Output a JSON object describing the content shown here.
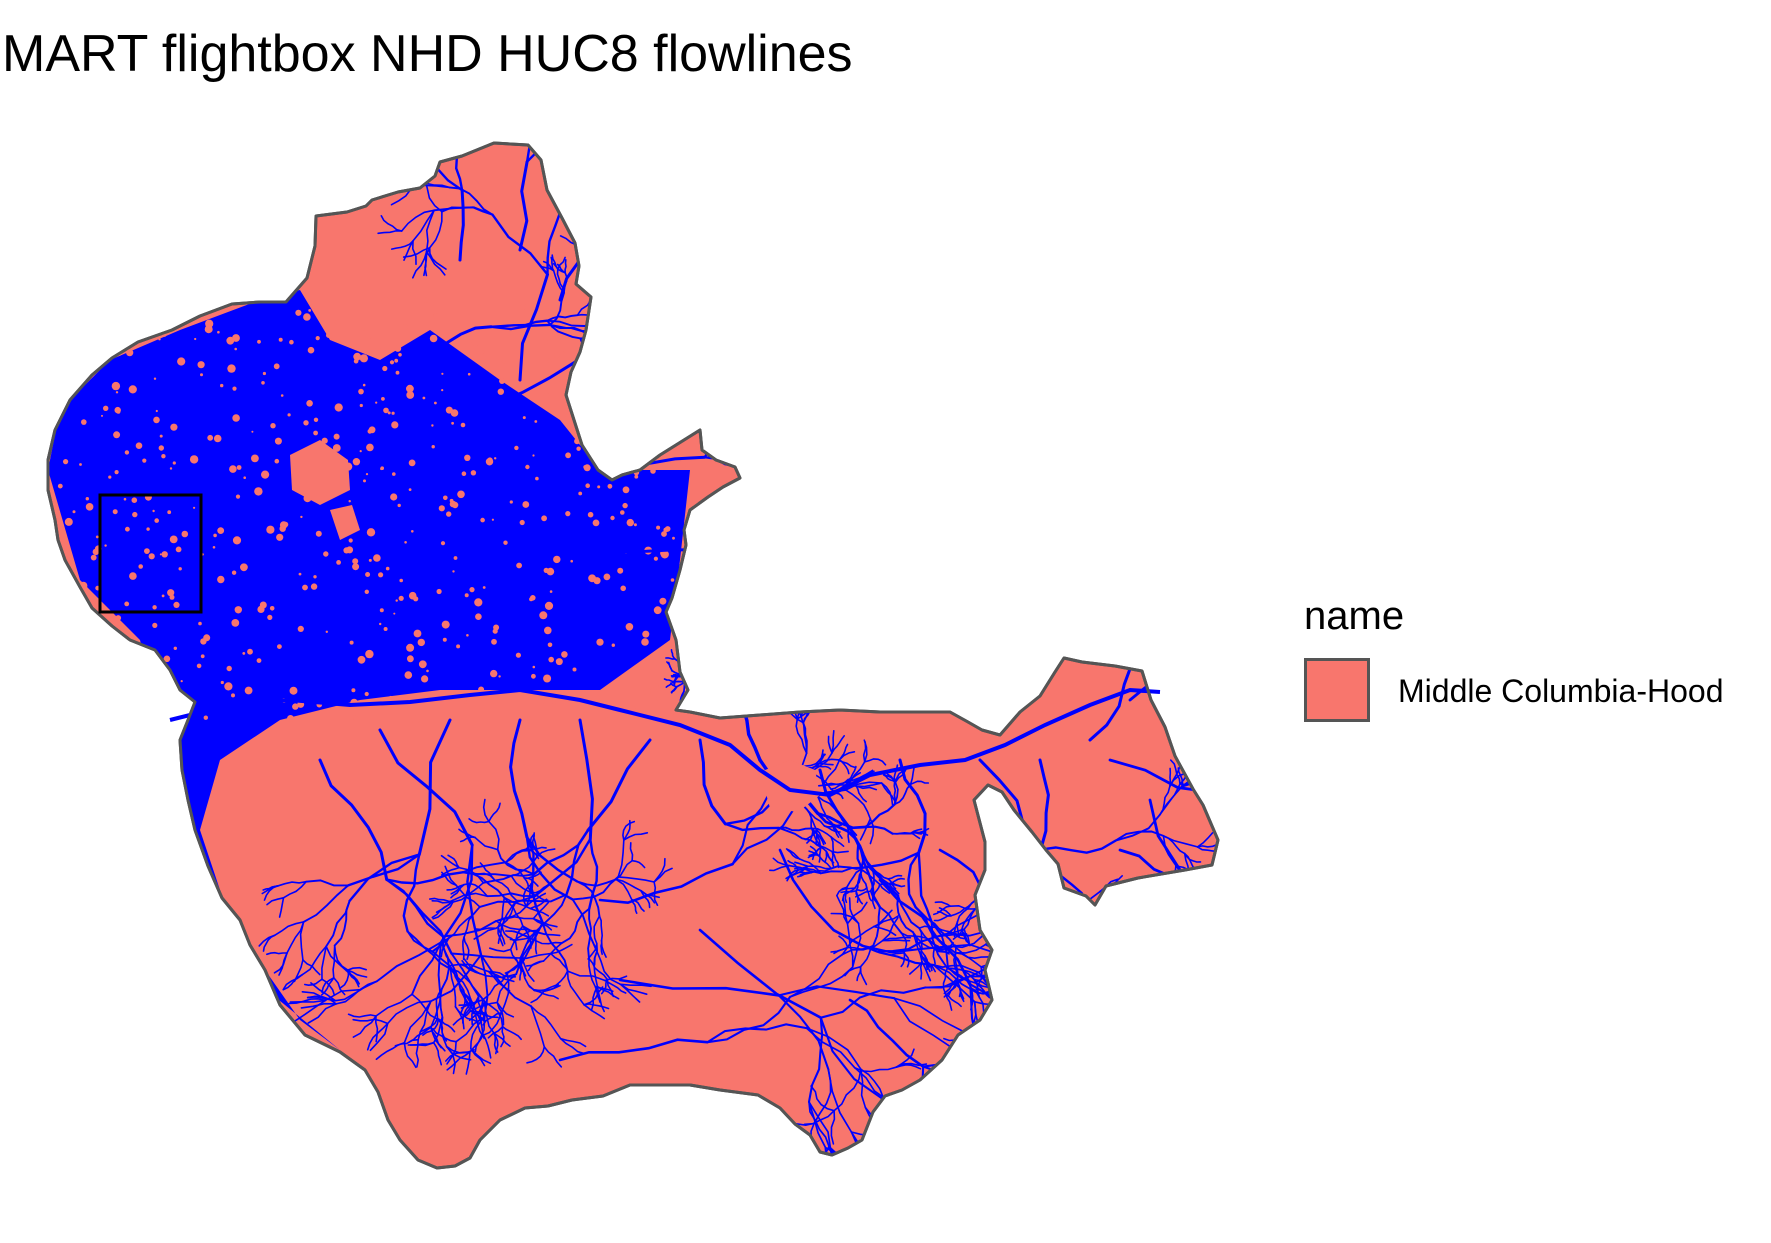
{
  "map": {
    "title": "MART flightbox NHD HUC8 flowlines",
    "region": {
      "name": "Middle Columbia-Hood",
      "fill": "#F8766D",
      "outline": "#555555"
    },
    "flowline_color": "#0000FF",
    "flightbox_color": "#000000"
  },
  "legend": {
    "title": "name",
    "items": [
      {
        "label": "Middle Columbia-Hood",
        "color": "#F8766D"
      }
    ]
  }
}
